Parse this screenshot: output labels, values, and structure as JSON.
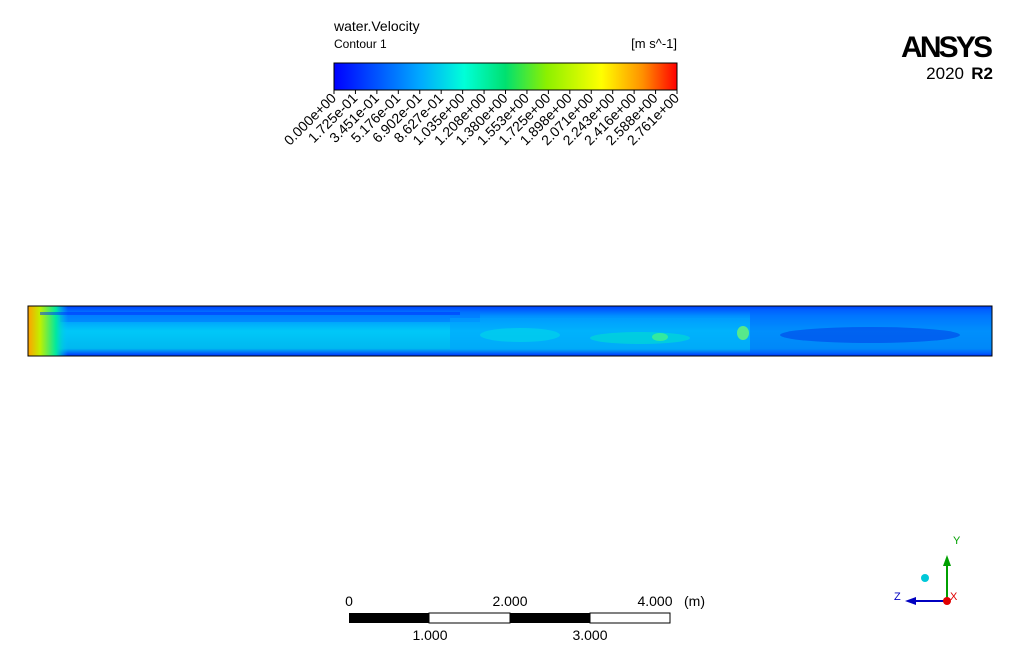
{
  "legend": {
    "title": "water.Velocity",
    "subtitle": "Contour 1",
    "units": "[m s^-1]",
    "tick_labels": [
      "0.000e+00",
      "1.725e-01",
      "3.451e-01",
      "5.176e-01",
      "6.902e-01",
      "8.627e-01",
      "1.035e+00",
      "1.208e+00",
      "1.380e+00",
      "1.553e+00",
      "1.725e+00",
      "1.898e+00",
      "2.071e+00",
      "2.243e+00",
      "2.416e+00",
      "2.588e+00",
      "2.761e+00"
    ]
  },
  "logo": {
    "brand": "ANSYS",
    "year": "2020",
    "release": "R2"
  },
  "scale_bar": {
    "top_labels": [
      "0",
      "2.000",
      "4.000"
    ],
    "unit": "(m)",
    "bottom_labels": [
      "1.000",
      "3.000"
    ]
  },
  "axes": {
    "y": "Y",
    "z": "Z",
    "x": "X"
  }
}
